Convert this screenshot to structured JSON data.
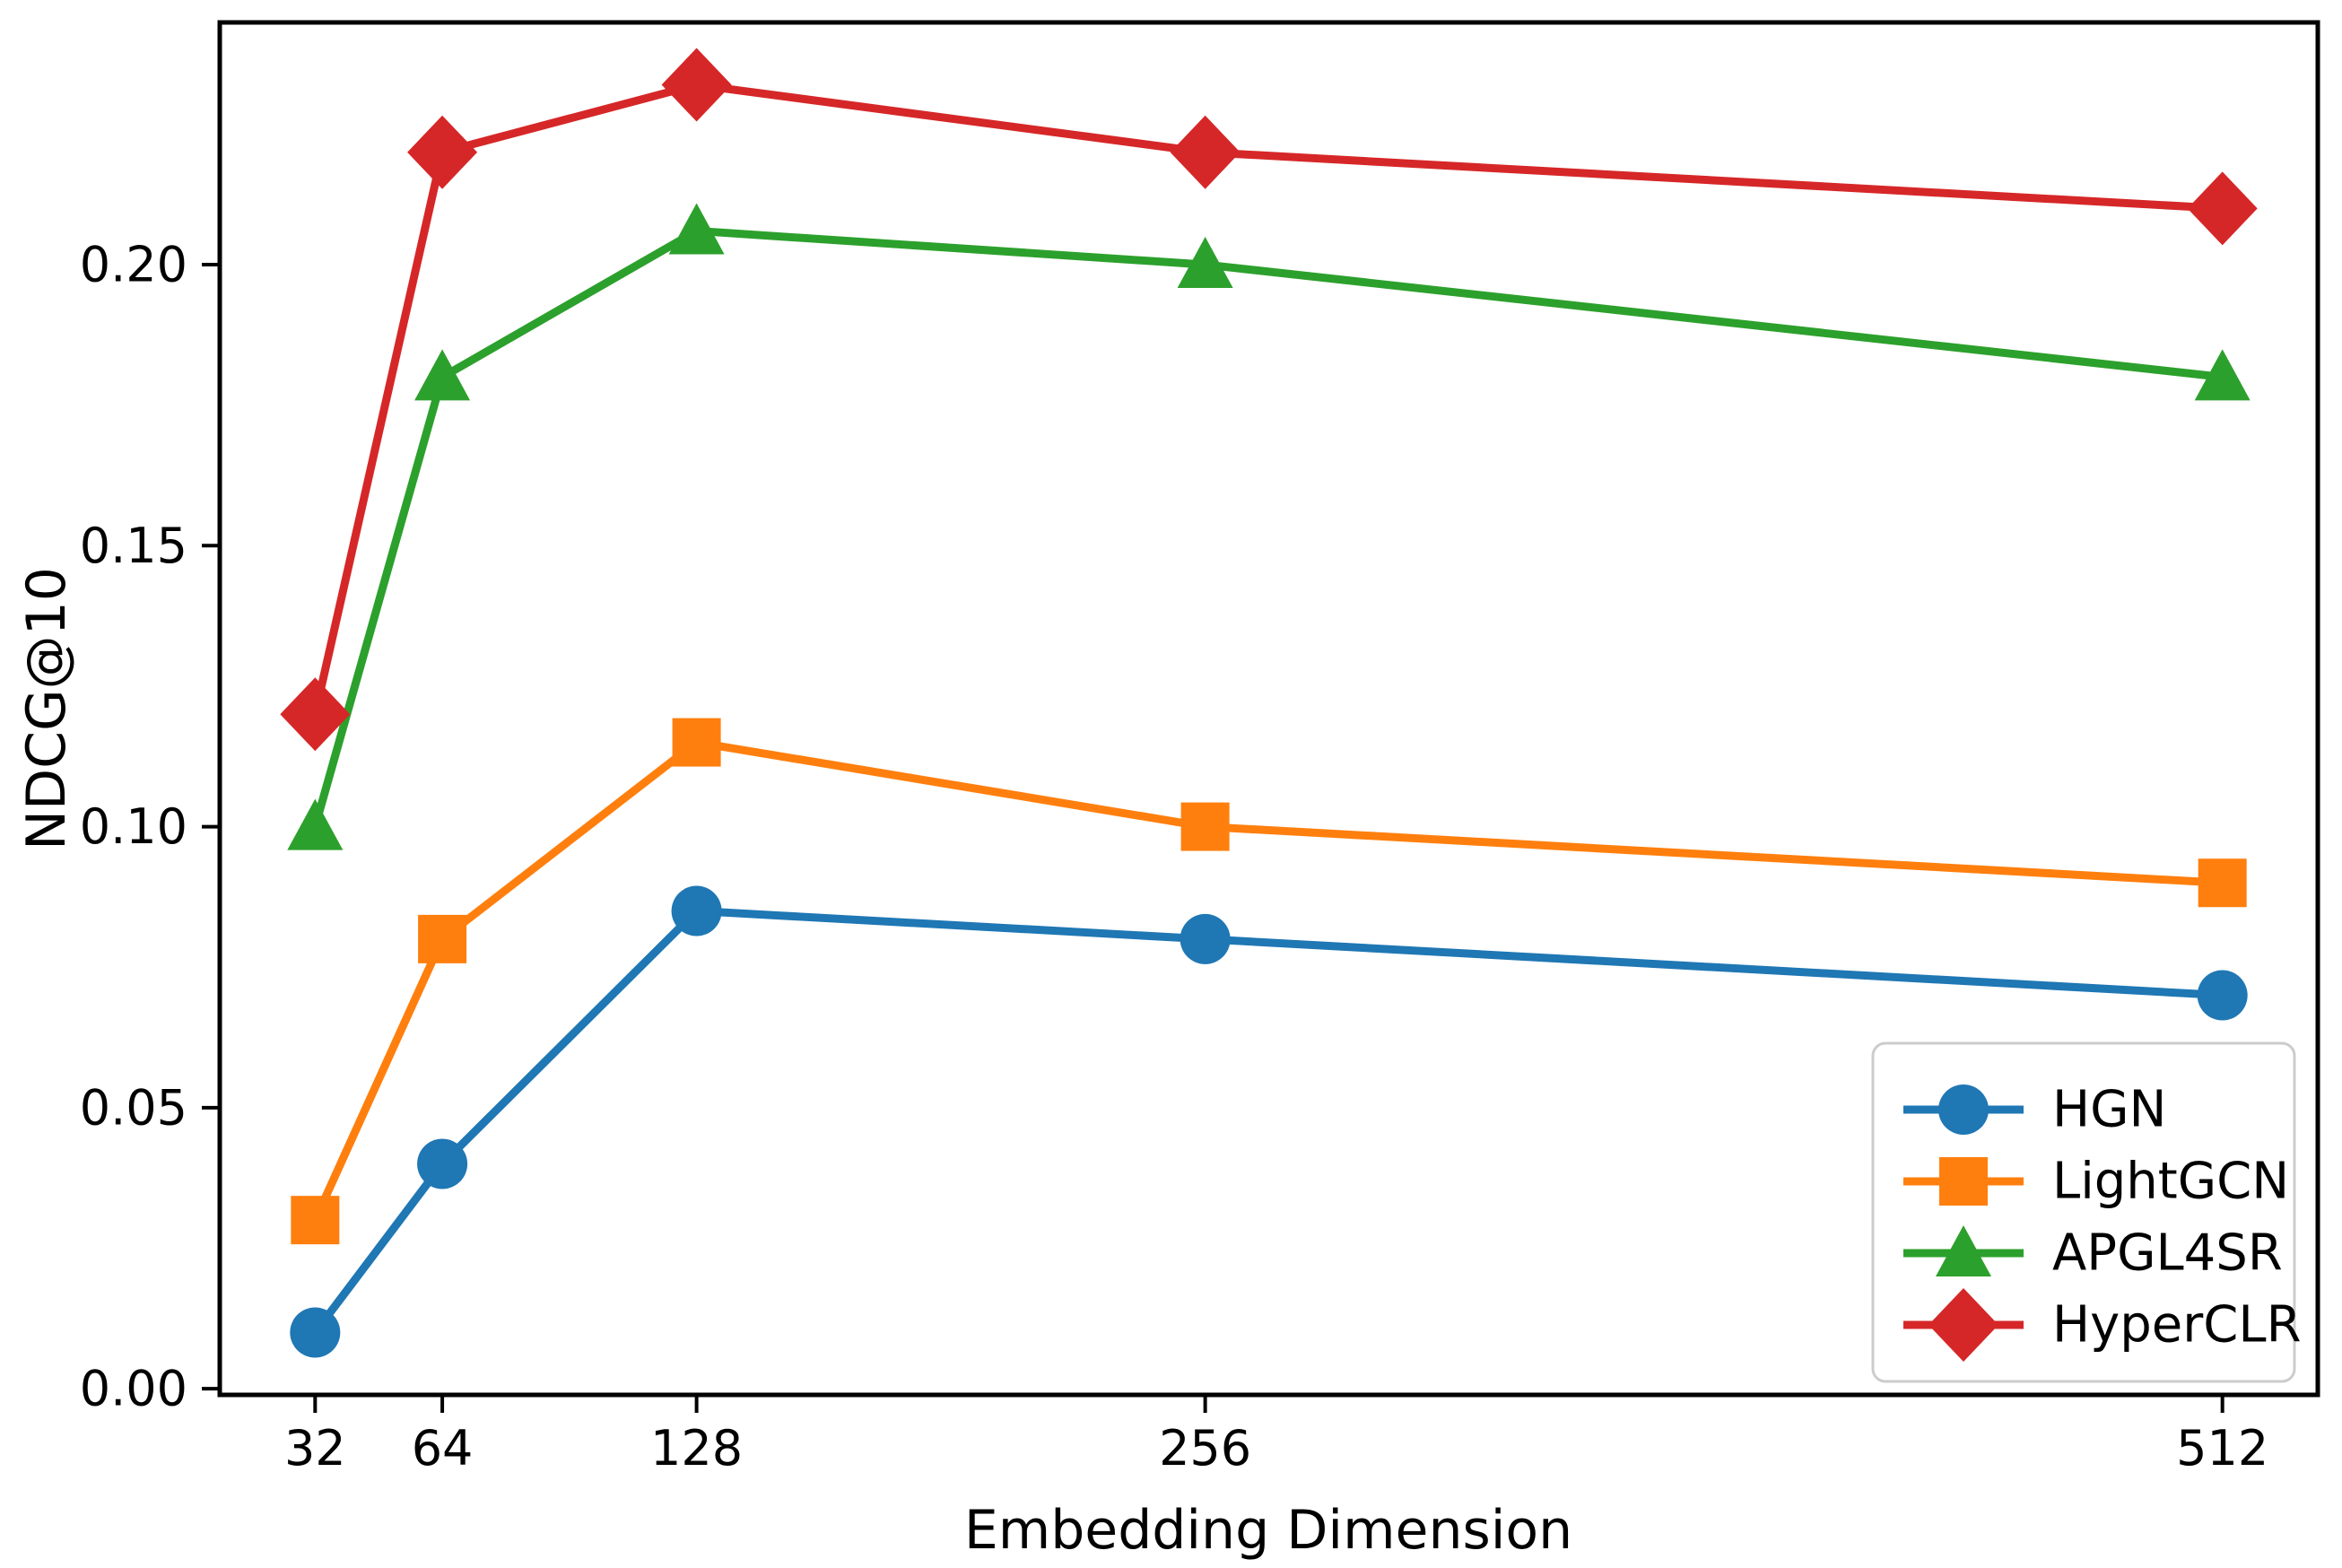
{
  "figure": {
    "background": "#ffffff",
    "axes_edge_color": "#000000",
    "legend_border_color": "#cccccc"
  },
  "chart_data": {
    "type": "line",
    "title": "",
    "xlabel": "Embedding Dimension",
    "ylabel": "NDCG@10",
    "x": [
      32,
      64,
      128,
      256,
      512
    ],
    "xtick_values": [
      32,
      64,
      128,
      256,
      512
    ],
    "xtick_labels": [
      "32",
      "64",
      "128",
      "256",
      "512"
    ],
    "ytick_values": [
      0.0,
      0.05,
      0.1,
      0.15,
      0.2
    ],
    "ytick_labels": [
      "0.00",
      "0.05",
      "0.10",
      "0.15",
      "0.20"
    ],
    "xlim": [
      8,
      536
    ],
    "ylim": [
      -0.0011,
      0.2431
    ],
    "grid": false,
    "legend_position": "lower right",
    "legend_entries": [
      "HGN",
      "LightGCN",
      "APGL4SR",
      "HyperCLR"
    ],
    "series": [
      {
        "name": "HGN",
        "color": "#1f77b4",
        "marker": "circle",
        "values": [
          0.01,
          0.04,
          0.085,
          0.08,
          0.07
        ]
      },
      {
        "name": "LightGCN",
        "color": "#ff7f0e",
        "marker": "square",
        "values": [
          0.03,
          0.08,
          0.115,
          0.1,
          0.09
        ]
      },
      {
        "name": "APGL4SR",
        "color": "#2ca02c",
        "marker": "triangle",
        "values": [
          0.1,
          0.18,
          0.206,
          0.2,
          0.18
        ]
      },
      {
        "name": "HyperCLR",
        "color": "#d62728",
        "marker": "diamond",
        "values": [
          0.12,
          0.22,
          0.232,
          0.22,
          0.21
        ]
      }
    ]
  }
}
